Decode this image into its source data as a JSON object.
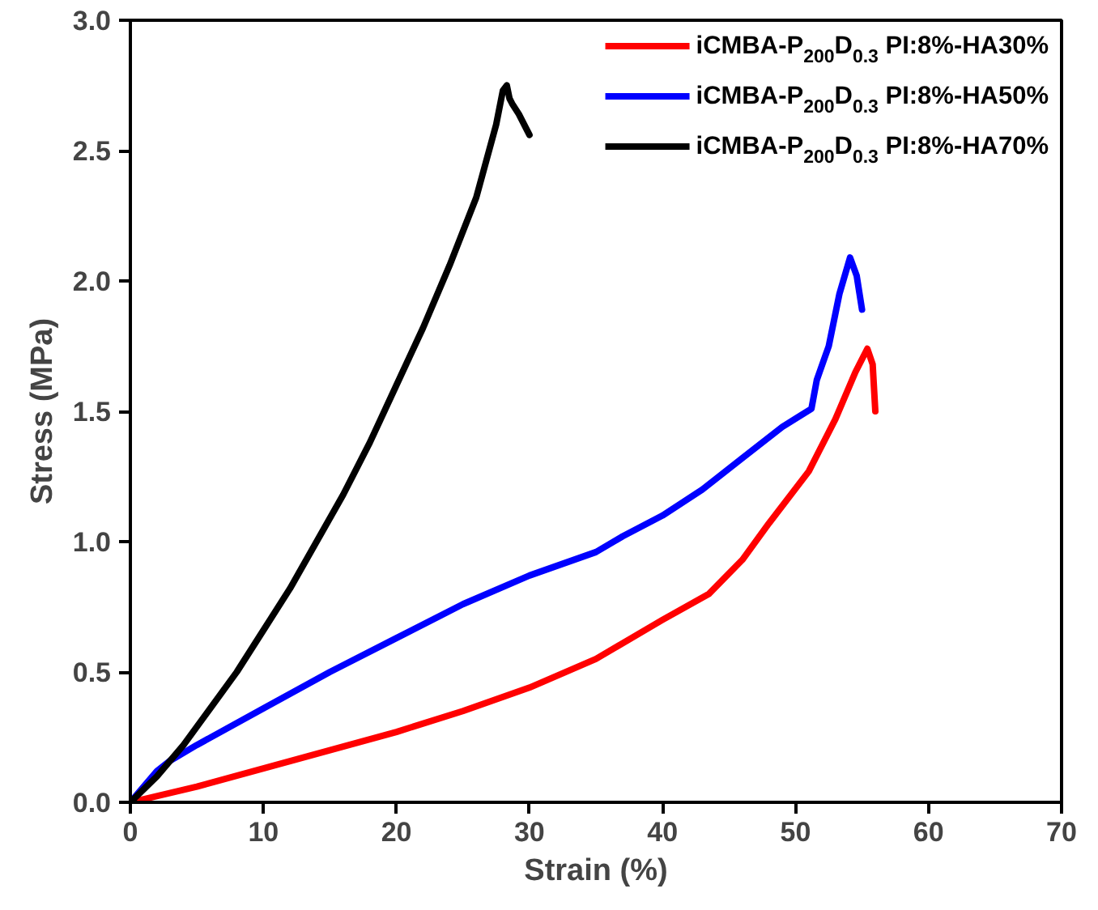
{
  "chart_data": {
    "type": "line",
    "xlabel": "Strain (%)",
    "ylabel": "Stress (MPa)",
    "xlim": [
      0,
      70
    ],
    "ylim": [
      0,
      3.0
    ],
    "xticks": [
      0,
      10,
      20,
      30,
      40,
      50,
      60,
      70
    ],
    "yticks": [
      {
        "value": 0,
        "label": "0.0"
      },
      0.5,
      {
        "value": 1,
        "label": "1.0"
      },
      1.5,
      {
        "value": 2,
        "label": "2.0"
      },
      2.5,
      {
        "value": 3,
        "label": "3.0"
      }
    ],
    "grid": false,
    "legend": "top right",
    "line_style": "solid",
    "marker": "none",
    "series": [
      {
        "name": "iCMBA-P$_{200}$D$_{0.3}$ PI:8%-HA30%",
        "color": "#ff0000",
        "x": [
          0,
          5,
          10,
          15,
          20,
          25,
          30,
          35,
          40,
          43.5,
          46,
          48,
          51,
          53,
          54.5,
          55.4,
          55.8,
          56
        ],
        "values": [
          0,
          0.06,
          0.13,
          0.2,
          0.27,
          0.35,
          0.44,
          0.55,
          0.7,
          0.8,
          0.93,
          1.07,
          1.27,
          1.47,
          1.65,
          1.74,
          1.68,
          1.5
        ]
      },
      {
        "name": "iCMBA-P$_{200}$D$_{0.3}$ PI:8%-HA50%",
        "color": "#0000ff",
        "x": [
          0,
          1,
          2,
          3,
          5,
          10,
          15,
          20,
          25,
          30,
          35,
          37,
          40,
          43,
          46,
          49,
          51.2,
          51.6,
          52.5,
          53.3,
          54.1,
          54.6,
          55
        ],
        "values": [
          0,
          0.06,
          0.12,
          0.16,
          0.22,
          0.36,
          0.5,
          0.63,
          0.76,
          0.87,
          0.96,
          1.02,
          1.1,
          1.2,
          1.32,
          1.44,
          1.51,
          1.62,
          1.75,
          1.95,
          2.09,
          2.02,
          1.89
        ]
      },
      {
        "name": "iCMBA-P$_{200}$D$_{0.3}$ PI:8%-HA70%",
        "color": "#000000",
        "x": [
          0,
          2,
          4,
          6,
          8,
          10,
          12,
          14,
          16,
          18,
          20,
          22,
          24,
          26,
          27.5,
          28,
          28.3,
          28.5,
          28.7,
          29.2,
          30
        ],
        "values": [
          0,
          0.1,
          0.22,
          0.36,
          0.5,
          0.66,
          0.82,
          1.0,
          1.18,
          1.38,
          1.6,
          1.82,
          2.06,
          2.32,
          2.6,
          2.73,
          2.75,
          2.7,
          2.68,
          2.64,
          2.56
        ]
      }
    ]
  }
}
